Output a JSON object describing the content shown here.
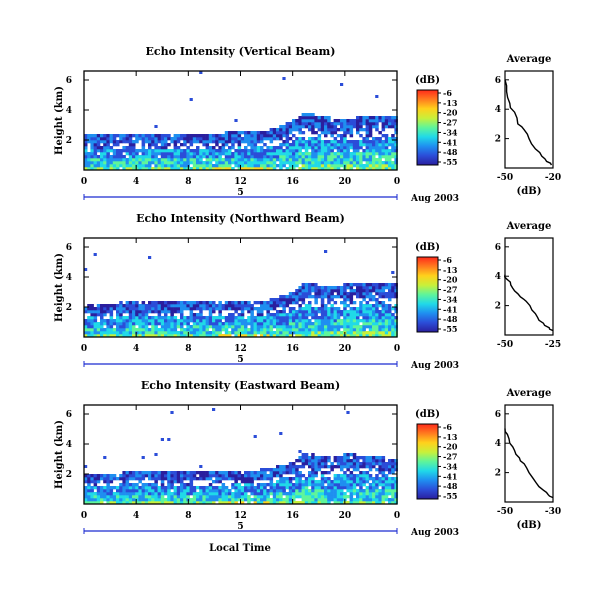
{
  "panels": [
    {
      "title": "Echo Intensity (Vertical Beam)",
      "ylabel": "Height (km)",
      "yticks": [
        "6",
        "4",
        "2"
      ],
      "xticks": [
        "0",
        "4",
        "8",
        "12",
        "16",
        "20",
        "0"
      ],
      "day_label": "5",
      "date_label": "Aug 2003",
      "cbar_unit": "(dB)",
      "cbar_ticks": [
        "-6",
        "-13",
        "-20",
        "-27",
        "-34",
        "-41",
        "-48",
        "-55"
      ],
      "avg_title": "Average",
      "avg_xticks": [
        "-50",
        "-20"
      ],
      "avg_xlabel": "(dB)",
      "avg_yticks": [
        "6",
        "4",
        "2"
      ]
    },
    {
      "title": "Echo Intensity (Northward Beam)",
      "ylabel": "Height (km)",
      "yticks": [
        "6",
        "4",
        "2"
      ],
      "xticks": [
        "0",
        "4",
        "8",
        "12",
        "16",
        "20",
        "0"
      ],
      "day_label": "5",
      "date_label": "Aug 2003",
      "cbar_unit": "(dB)",
      "cbar_ticks": [
        "-6",
        "-13",
        "-20",
        "-27",
        "-34",
        "-41",
        "-48",
        "-55"
      ],
      "avg_title": "Average",
      "avg_xticks": [
        "-50",
        "-25"
      ],
      "avg_xlabel": "",
      "avg_yticks": [
        "6",
        "4",
        "2"
      ]
    },
    {
      "title": "Echo Intensity (Eastward Beam)",
      "ylabel": "Height (km)",
      "yticks": [
        "6",
        "4",
        "2"
      ],
      "xticks": [
        "0",
        "4",
        "8",
        "12",
        "16",
        "20",
        "0"
      ],
      "day_label": "5",
      "date_label": "Aug 2003",
      "xlabel": "Local Time",
      "cbar_unit": "(dB)",
      "cbar_ticks": [
        "-6",
        "-13",
        "-20",
        "-27",
        "-34",
        "-41",
        "-48",
        "-55"
      ],
      "avg_title": "Average",
      "avg_xticks": [
        "-50",
        "-30"
      ],
      "avg_xlabel": "(dB)",
      "avg_yticks": [
        "6",
        "4",
        "2"
      ]
    }
  ],
  "colorbar_colors": [
    "#ff2a1a",
    "#ff7b1f",
    "#ffd11c",
    "#c9f03a",
    "#5ff59a",
    "#20d9e8",
    "#1f8ff0",
    "#2b4dd8",
    "#2a1f9e"
  ],
  "chart_data": [
    {
      "type": "heatmap",
      "title": "Echo Intensity (Vertical Beam)",
      "ylabel": "Height (km)",
      "x_range_hours": [
        0,
        24
      ],
      "y_range_km": [
        0,
        6.6
      ],
      "colorbar": {
        "unit": "dB",
        "range": [
          -55,
          -6
        ],
        "ticks": [
          -6,
          -13,
          -20,
          -27,
          -34,
          -41,
          -48,
          -55
        ]
      },
      "echo_top_km": [
        {
          "x": 0,
          "y": 2.4
        },
        {
          "x": 4,
          "y": 2.4
        },
        {
          "x": 8,
          "y": 2.4
        },
        {
          "x": 12,
          "y": 2.5
        },
        {
          "x": 14,
          "y": 2.6
        },
        {
          "x": 16,
          "y": 3.3
        },
        {
          "x": 17,
          "y": 3.9
        },
        {
          "x": 18,
          "y": 3.5
        },
        {
          "x": 20,
          "y": 3.4
        },
        {
          "x": 22,
          "y": 3.6
        },
        {
          "x": 24,
          "y": 3.6
        }
      ]
    },
    {
      "type": "line",
      "title": "Average",
      "xlabel": "(dB)",
      "xlim": [
        -50,
        -20
      ],
      "ylim": [
        0,
        6.6
      ],
      "series": [
        {
          "x": [
            -50,
            -49,
            -47,
            -44,
            -42,
            -38,
            -35,
            -31,
            -27,
            -24,
            -21
          ],
          "y": [
            6.0,
            5.2,
            4.4,
            3.8,
            3.0,
            2.6,
            2.0,
            1.3,
            0.8,
            0.45,
            0.2
          ]
        }
      ]
    },
    {
      "type": "heatmap",
      "title": "Echo Intensity (Northward Beam)",
      "ylabel": "Height (km)",
      "x_range_hours": [
        0,
        24
      ],
      "y_range_km": [
        0,
        6.6
      ],
      "colorbar": {
        "unit": "dB",
        "range": [
          -55,
          -6
        ],
        "ticks": [
          -6,
          -13,
          -20,
          -27,
          -34,
          -41,
          -48,
          -55
        ]
      },
      "echo_top_km": [
        {
          "x": 0,
          "y": 2.2
        },
        {
          "x": 4,
          "y": 2.3
        },
        {
          "x": 8,
          "y": 2.3
        },
        {
          "x": 12,
          "y": 2.4
        },
        {
          "x": 14,
          "y": 2.4
        },
        {
          "x": 16,
          "y": 3.0
        },
        {
          "x": 17,
          "y": 3.7
        },
        {
          "x": 18,
          "y": 3.3
        },
        {
          "x": 20,
          "y": 3.5
        },
        {
          "x": 22,
          "y": 3.6
        },
        {
          "x": 24,
          "y": 3.5
        }
      ]
    },
    {
      "type": "line",
      "title": "Average",
      "xlabel": "",
      "xlim": [
        -50,
        -25
      ],
      "ylim": [
        0,
        6.6
      ],
      "series": [
        {
          "x": [
            -50,
            -49,
            -47,
            -45,
            -42,
            -39,
            -36,
            -33,
            -30,
            -27,
            -25
          ],
          "y": [
            4.1,
            3.8,
            3.4,
            3.0,
            2.6,
            2.3,
            1.7,
            1.2,
            0.8,
            0.5,
            0.3
          ]
        }
      ]
    },
    {
      "type": "heatmap",
      "title": "Echo Intensity (Eastward Beam)",
      "ylabel": "Height (km)",
      "xlabel": "Local Time",
      "x_range_hours": [
        0,
        24
      ],
      "y_range_km": [
        0,
        6.6
      ],
      "colorbar": {
        "unit": "dB",
        "range": [
          -55,
          -6
        ],
        "ticks": [
          -6,
          -13,
          -20,
          -27,
          -34,
          -41,
          -48,
          -55
        ]
      },
      "echo_top_km": [
        {
          "x": 0,
          "y": 2.0
        },
        {
          "x": 4,
          "y": 2.1
        },
        {
          "x": 8,
          "y": 2.1
        },
        {
          "x": 12,
          "y": 2.2
        },
        {
          "x": 14,
          "y": 2.3
        },
        {
          "x": 16,
          "y": 2.8
        },
        {
          "x": 17,
          "y": 3.5
        },
        {
          "x": 18,
          "y": 3.1
        },
        {
          "x": 20,
          "y": 3.3
        },
        {
          "x": 22,
          "y": 3.2
        },
        {
          "x": 24,
          "y": 2.9
        }
      ]
    },
    {
      "type": "line",
      "title": "Average",
      "xlabel": "(dB)",
      "xlim": [
        -50,
        -30
      ],
      "ylim": [
        0,
        6.6
      ],
      "series": [
        {
          "x": [
            -50,
            -49,
            -48,
            -46,
            -44,
            -42,
            -40,
            -37,
            -34,
            -32,
            -30
          ],
          "y": [
            5.0,
            4.6,
            4.0,
            3.5,
            3.0,
            2.6,
            2.0,
            1.3,
            0.8,
            0.5,
            0.3
          ]
        }
      ]
    }
  ]
}
